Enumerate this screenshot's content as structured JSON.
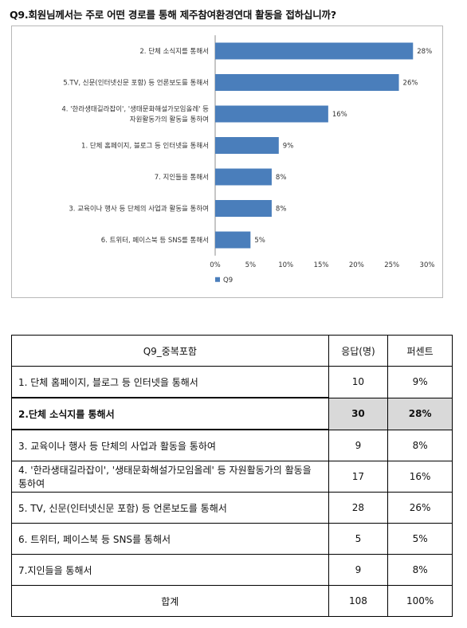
{
  "question": "Q9.회원님께서는 주로 어떤 경로를 통해 제주참여환경연대 활동을 접하십니까?",
  "chart_data": {
    "type": "bar",
    "orientation": "horizontal",
    "categories": [
      "2. 단체 소식지를 통해서",
      "5.TV, 신문(인터넷신문 포함) 등 언론보도를 통해서",
      [
        "4. '한라생태길라잡이', '생태문화해설가모임올레' 등",
        "자원활동가의 활동을 통하여"
      ],
      "1. 단체 홈페이지, 블로그 등 인터넷을 통해서",
      "7. 지인들을 통해서",
      "3. 교육이나 행사 등 단체의 사업과 활동을 통하여",
      "6. 트위터, 페이스북 등 SNS를 통해서"
    ],
    "series": [
      {
        "name": "Q9",
        "values": [
          28,
          26,
          16,
          9,
          8,
          8,
          5
        ]
      }
    ],
    "value_labels": [
      "28%",
      "26%",
      "16%",
      "9%",
      "8%",
      "8%",
      "5%"
    ],
    "xlim": [
      0,
      30
    ],
    "ticks": [
      0,
      5,
      10,
      15,
      20,
      25,
      30
    ],
    "tick_labels": [
      "0%",
      "5%",
      "10%",
      "15%",
      "20%",
      "25%",
      "30%"
    ],
    "legend": "bottom-left",
    "grid": false,
    "bar_color": "#4a7ebb"
  },
  "table": {
    "headers": [
      "Q9_중복포함",
      "응답(명)",
      "퍼센트"
    ],
    "rows": [
      {
        "label": "1. 단체 홈페이지, 블로그 등 인터넷을 통해서",
        "count": "10",
        "percent": "9%"
      },
      {
        "label": "2.단체 소식지를 통해서",
        "count": "30",
        "percent": "28%",
        "highlight": true
      },
      {
        "label": "3. 교육이나 행사 등 단체의 사업과 활동을 통하여",
        "count": "9",
        "percent": "8%"
      },
      {
        "label": "4. '한라생태길라잡이', '생태문화해설가모임올레' 등 자원활동가의 활동을 통하여",
        "count": "17",
        "percent": "16%"
      },
      {
        "label": "5. TV, 신문(인터넷신문 포함) 등 언론보도를 통해서",
        "count": "28",
        "percent": "26%"
      },
      {
        "label": "6. 트위터, 페이스북 등 SNS를 통해서",
        "count": "5",
        "percent": "5%"
      },
      {
        "label": "7.지인들을 통해서",
        "count": "9",
        "percent": "8%"
      }
    ],
    "total": {
      "label": "합계",
      "count": "108",
      "percent": "100%"
    }
  }
}
